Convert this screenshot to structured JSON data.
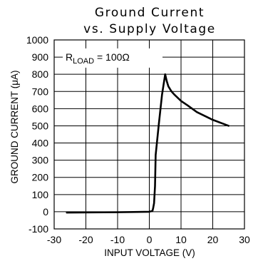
{
  "chart_data": {
    "type": "line",
    "title_line1": "Ground Current",
    "title_line2": "vs. Supply Voltage",
    "xlabel": "INPUT VOLTAGE (V)",
    "ylabel": "GROUND CURRENT (μA)",
    "xlim": [
      -30,
      30
    ],
    "ylim": [
      -100,
      1000
    ],
    "x_ticks": [
      -30,
      -20,
      -10,
      0,
      10,
      20,
      30
    ],
    "x_tick_labels": [
      "-30",
      "-20",
      "-10",
      "0",
      "10",
      "20",
      "30"
    ],
    "y_ticks": [
      -100,
      0,
      100,
      200,
      300,
      400,
      500,
      600,
      700,
      800,
      900,
      1000
    ],
    "y_tick_labels": [
      "-100",
      "0",
      "100",
      "200",
      "300",
      "400",
      "500",
      "600",
      "700",
      "800",
      "900",
      "1000"
    ],
    "grid": true,
    "annotation": {
      "main": "R",
      "sub": "LOAD",
      "rest": " = 100Ω"
    },
    "series": [
      {
        "x": [
          -26,
          -10,
          0,
          1.0,
          1.2,
          1.5,
          1.8,
          2.0,
          3.0,
          4.0,
          5.0,
          5.5,
          6.0,
          7.0,
          8.0,
          10.0,
          12.0,
          15.0,
          20.0,
          25.0
        ],
        "y": [
          -5,
          -3,
          0,
          5,
          20,
          50,
          150,
          330,
          510,
          680,
          800,
          760,
          730,
          700,
          680,
          645,
          620,
          580,
          535,
          500
        ]
      }
    ]
  }
}
